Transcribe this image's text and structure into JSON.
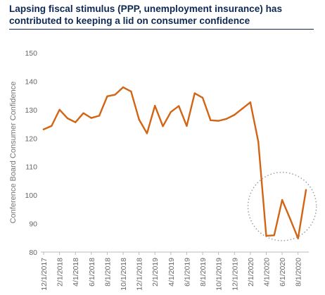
{
  "chart_data": {
    "type": "line",
    "title": "Lapsing fiscal stimulus (PPP, unemployment insurance) has contributed to keeping a lid on consumer confidence",
    "xlabel": "",
    "ylabel": "Conference Board Consumer Confidence",
    "ylim": [
      80,
      150
    ],
    "yticks": [
      80,
      90,
      100,
      110,
      120,
      130,
      140,
      150
    ],
    "grid": false,
    "legend": "none",
    "x_tick_labels": [
      "12/1/2017",
      "2/1/2018",
      "4/1/2018",
      "6/1/2018",
      "8/1/2018",
      "10/1/2018",
      "12/1/2018",
      "2/1/2019",
      "4/1/2019",
      "6/1/2019",
      "8/1/2019",
      "10/1/2019",
      "12/1/2019",
      "2/1/2020",
      "4/1/2020",
      "6/1/2020",
      "8/1/2020"
    ],
    "x": [
      "12/1/2017",
      "1/1/2018",
      "2/1/2018",
      "3/1/2018",
      "4/1/2018",
      "5/1/2018",
      "6/1/2018",
      "7/1/2018",
      "8/1/2018",
      "9/1/2018",
      "10/1/2018",
      "11/1/2018",
      "12/1/2018",
      "1/1/2019",
      "2/1/2019",
      "3/1/2019",
      "4/1/2019",
      "5/1/2019",
      "6/1/2019",
      "7/1/2019",
      "8/1/2019",
      "9/1/2019",
      "10/1/2019",
      "11/1/2019",
      "12/1/2019",
      "1/1/2020",
      "2/1/2020",
      "3/1/2020",
      "4/1/2020",
      "5/1/2020",
      "6/1/2020",
      "7/1/2020",
      "8/1/2020",
      "9/1/2020"
    ],
    "series": [
      {
        "values": [
          123.1,
          124.3,
          130.0,
          127.0,
          125.6,
          128.8,
          127.1,
          127.9,
          134.7,
          135.3,
          137.9,
          136.4,
          126.6,
          121.7,
          131.4,
          124.2,
          129.2,
          131.3,
          124.3,
          135.8,
          134.2,
          126.3,
          126.1,
          126.8,
          128.2,
          130.4,
          132.6,
          118.8,
          85.7,
          85.9,
          98.3,
          91.7,
          84.8,
          101.8
        ]
      }
    ],
    "colors": {
      "line": "#d26414",
      "highlight_circle": "#9a9a9a",
      "axis": "#bbbbbb",
      "title": "#0f2a52"
    },
    "annotations": [
      {
        "type": "dotted-circle",
        "center_x": "6/1/2020",
        "center_y": 96,
        "radius_x_months": 4.3,
        "radius_y_units": 12
      }
    ]
  }
}
